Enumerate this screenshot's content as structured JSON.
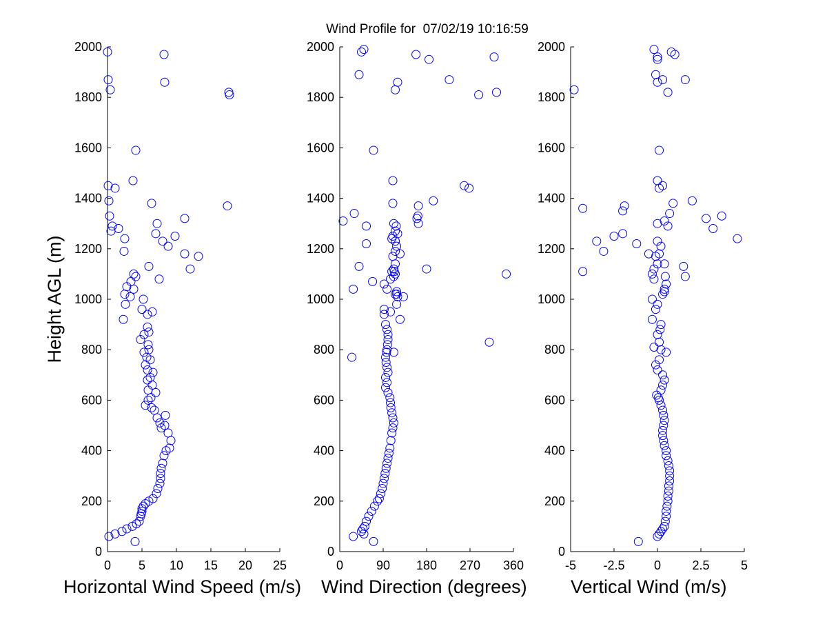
{
  "title": "Wind Profile for  07/02/19 10:16:59",
  "chart_data": [
    {
      "type": "scatter",
      "title": "",
      "xlabel": "Horizontal Wind Speed (m/s)",
      "ylabel": "Height AGL (m)",
      "xlim": [
        0,
        25
      ],
      "ylim": [
        0,
        2000
      ],
      "xticks": [
        0,
        5,
        10,
        15,
        20,
        25
      ],
      "xtick_labels": [
        "0",
        "5",
        "10",
        "15",
        "20",
        "25"
      ],
      "yticks": [
        0,
        200,
        400,
        600,
        800,
        1000,
        1200,
        1400,
        1600,
        1800,
        2000
      ],
      "ytick_labels": [
        "0",
        "200",
        "400",
        "600",
        "800",
        "1000",
        "1200",
        "1400",
        "1600",
        "1800",
        "2000"
      ],
      "grid": false,
      "marker": "open-circle",
      "color": "#0000ff",
      "series": [
        {
          "x": [
            4.0,
            0.2,
            1.1,
            2.1,
            2.8,
            3.6,
            4.2,
            4.6,
            4.8,
            4.9,
            5.0,
            5.0,
            5.2,
            5.5,
            6.0,
            6.6,
            7.1,
            7.3,
            7.6,
            7.7,
            7.7,
            7.8,
            8.0,
            8.2,
            8.5,
            9.0,
            9.2,
            8.8,
            8.3,
            7.8,
            7.6,
            7.2,
            8.4,
            6.8,
            6.4,
            5.5,
            5.9,
            6.3,
            7.0,
            5.9,
            6.5,
            5.8,
            6.2,
            6.6,
            5.8,
            5.5,
            6.2,
            5.7,
            5.3,
            6.0,
            5.9,
            4.8,
            5.3,
            6.0,
            5.8,
            2.3,
            5.8,
            6.5,
            5.0,
            2.6,
            5.2,
            3.3,
            2.5,
            3.8,
            2.8,
            3.4,
            7.5,
            4.1,
            3.8,
            12.0,
            6.0,
            13.2,
            2.4,
            11.2,
            8.8,
            8.0,
            2.5,
            9.8,
            7.0,
            0.5,
            1.6,
            0.7,
            7.2,
            11.2,
            0.3,
            17.4,
            6.4,
            0.2,
            1.1,
            0.1,
            3.7,
            4.1,
            17.7,
            17.6,
            0.4,
            0.1,
            8.3,
            8.2,
            0.0
          ],
          "y": [
            40,
            60,
            70,
            80,
            90,
            100,
            110,
            120,
            140,
            150,
            160,
            170,
            180,
            190,
            200,
            210,
            230,
            250,
            270,
            290,
            310,
            330,
            350,
            380,
            400,
            410,
            440,
            470,
            500,
            490,
            510,
            530,
            540,
            560,
            570,
            580,
            600,
            610,
            630,
            640,
            660,
            680,
            690,
            710,
            720,
            740,
            760,
            770,
            790,
            800,
            820,
            840,
            860,
            870,
            890,
            920,
            940,
            950,
            960,
            980,
            1000,
            1010,
            1020,
            1040,
            1050,
            1070,
            1080,
            1090,
            1100,
            1120,
            1130,
            1170,
            1190,
            1180,
            1210,
            1230,
            1240,
            1250,
            1260,
            1270,
            1280,
            1290,
            1300,
            1320,
            1330,
            1370,
            1380,
            1390,
            1440,
            1450,
            1470,
            1590,
            1810,
            1820,
            1830,
            1870,
            1860,
            1970,
            1980
          ]
        }
      ]
    },
    {
      "type": "scatter",
      "title": "",
      "xlabel": "Wind Direction (degrees)",
      "ylabel": "",
      "xlim": [
        0,
        360
      ],
      "ylim": [
        0,
        2000
      ],
      "xticks": [
        0,
        90,
        180,
        270,
        360
      ],
      "xtick_labels": [
        "0",
        "90",
        "180",
        "270",
        "360"
      ],
      "yticks": [
        0,
        200,
        400,
        600,
        800,
        1000,
        1200,
        1400,
        1600,
        1800,
        2000
      ],
      "ytick_labels": [
        "0",
        "200",
        "400",
        "600",
        "800",
        "1000",
        "1200",
        "1400",
        "1600",
        "1800",
        "2000"
      ],
      "grid": false,
      "marker": "open-circle",
      "color": "#0000ff",
      "series": [
        {
          "x": [
            70,
            28,
            50,
            45,
            48,
            52,
            55,
            60,
            66,
            72,
            78,
            82,
            85,
            88,
            90,
            92,
            94,
            96,
            98,
            100,
            102,
            104,
            106,
            108,
            110,
            112,
            110,
            108,
            106,
            105,
            104,
            100,
            95,
            98,
            95,
            100,
            98,
            96,
            95,
            97,
            98,
            99,
            100,
            100,
            98,
            95,
            92,
            92,
            105,
            118,
            132,
            115,
            118,
            98,
            92,
            105,
            112,
            115,
            108,
            112,
            115,
            110,
            115,
            118,
            115,
            110,
            120,
            115,
            117,
            163,
            162,
            160,
            163,
            194,
            125,
            7,
            115,
            108,
            112,
            113,
            118,
            120,
            125,
            30,
            110,
            55,
            55,
            68,
            258,
            70,
            110,
            268,
            115,
            325,
            288,
            227,
            120,
            185,
            320,
            45,
            40,
            50,
            158,
            180,
            40,
            345,
            112,
            310,
            25,
            28
          ],
          "y": [
            40,
            60,
            70,
            80,
            90,
            100,
            120,
            140,
            160,
            180,
            200,
            210,
            230,
            250,
            270,
            290,
            310,
            330,
            350,
            370,
            390,
            410,
            440,
            470,
            490,
            510,
            530,
            550,
            570,
            590,
            610,
            630,
            650,
            670,
            690,
            710,
            730,
            750,
            770,
            790,
            800,
            820,
            840,
            860,
            880,
            900,
            940,
            960,
            950,
            980,
            1010,
            1020,
            1030,
            1040,
            1060,
            1080,
            1090,
            1100,
            1110,
            1120,
            1140,
            1170,
            1190,
            1210,
            1230,
            1250,
            1260,
            1270,
            1290,
            1300,
            1330,
            1320,
            1370,
            1390,
            1180,
            1310,
            1230,
            1240,
            1300,
            1110,
            1020,
            1010,
            920,
            1340,
            1380,
            1220,
            1290,
            1070,
            1450,
            1590,
            1470,
            1440,
            1830,
            1820,
            1810,
            1870,
            1860,
            1950,
            1960,
            1980,
            1890,
            1990,
            1970,
            1120,
            1130,
            1100,
            790,
            830,
            770,
            1040
          ]
        }
      ]
    },
    {
      "type": "scatter",
      "title": "",
      "xlabel": "Vertical Wind (m/s)",
      "ylabel": "",
      "xlim": [
        -5,
        5
      ],
      "ylim": [
        0,
        2000
      ],
      "xticks": [
        -5,
        -2.5,
        0,
        2.5,
        5
      ],
      "xtick_labels": [
        "-5",
        "-2.5",
        "0",
        "2.5",
        "5"
      ],
      "yticks": [
        0,
        200,
        400,
        600,
        800,
        1000,
        1200,
        1400,
        1600,
        1800,
        2000
      ],
      "ytick_labels": [
        "0",
        "200",
        "400",
        "600",
        "800",
        "1000",
        "1200",
        "1400",
        "1600",
        "1800",
        "2000"
      ],
      "grid": false,
      "marker": "open-circle",
      "color": "#0000ff",
      "series": [
        {
          "x": [
            -1.1,
            0.0,
            0.1,
            0.2,
            0.3,
            0.4,
            0.45,
            0.5,
            0.5,
            0.55,
            0.6,
            0.6,
            0.65,
            0.65,
            0.7,
            0.7,
            0.7,
            0.65,
            0.6,
            0.5,
            0.5,
            0.4,
            0.35,
            0.3,
            0.3,
            0.35,
            0.4,
            0.35,
            0.3,
            0.2,
            0.1,
            0.05,
            -0.05,
            0.2,
            0.3,
            0.4,
            0.3,
            0.0,
            -0.1,
            0.1,
            0.5,
            0.2,
            0.1,
            -0.2,
            0.0,
            0.15,
            0.2,
            -0.3,
            -0.1,
            0.0,
            -0.3,
            0.4,
            0.4,
            0.5,
            0.45,
            0.3,
            -0.2,
            -0.3,
            -0.2,
            0.0,
            -0.1,
            0.1,
            0.4,
            0.2,
            1.5,
            1.6,
            0.0,
            -0.5,
            -2.0,
            -1.2,
            -2.5,
            -3.5,
            -3.1,
            -1.9,
            0.0,
            0.4,
            0.7,
            0.9,
            0.6,
            3.2,
            2.8,
            3.7,
            4.6,
            -4.3,
            -4.3,
            -2.0,
            2.0,
            0.1,
            0.3,
            0.0,
            0.1,
            0.6,
            0.0,
            0.3,
            -0.1,
            -0.2,
            0.0,
            1.0,
            0.8,
            1.6,
            -4.8,
            0.0
          ],
          "y": [
            40,
            60,
            70,
            80,
            90,
            100,
            120,
            140,
            160,
            180,
            200,
            220,
            240,
            260,
            280,
            300,
            320,
            340,
            360,
            380,
            400,
            420,
            440,
            460,
            480,
            500,
            520,
            540,
            560,
            580,
            600,
            610,
            620,
            640,
            660,
            680,
            700,
            720,
            740,
            760,
            790,
            800,
            830,
            810,
            860,
            880,
            900,
            920,
            960,
            980,
            1000,
            1030,
            1040,
            1060,
            1090,
            1020,
            1080,
            1100,
            1120,
            1140,
            1170,
            1180,
            1140,
            1210,
            1130,
            1090,
            1230,
            1180,
            1260,
            1220,
            1250,
            1230,
            1190,
            1370,
            1300,
            1310,
            1340,
            1380,
            1290,
            1280,
            1320,
            1330,
            1240,
            1110,
            1360,
            1350,
            1390,
            1440,
            1450,
            1470,
            1590,
            1820,
            1860,
            1870,
            1890,
            1990,
            1960,
            1970,
            1980,
            1870,
            1830,
            1950
          ]
        }
      ]
    }
  ]
}
